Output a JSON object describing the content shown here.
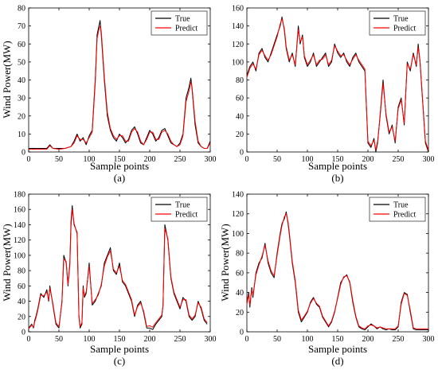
{
  "colors": {
    "true_series": "#000000",
    "predict_series": "#ff0000"
  },
  "chart_data": [
    {
      "type": "line",
      "panel_label": "(a)",
      "xlabel": "Sample points",
      "ylabel": "Wind Power(MW)",
      "xlim": [
        0,
        300
      ],
      "ylim": [
        0,
        80
      ],
      "xticks": [
        0,
        50,
        100,
        150,
        200,
        250,
        300
      ],
      "yticks": [
        0,
        10,
        20,
        30,
        40,
        50,
        60,
        70,
        80
      ],
      "legend_position": "top-right",
      "series": [
        {
          "name": "True",
          "x": [
            0,
            10,
            20,
            30,
            35,
            40,
            50,
            60,
            70,
            75,
            80,
            85,
            90,
            95,
            100,
            105,
            110,
            113,
            116,
            118,
            120,
            125,
            130,
            135,
            140,
            145,
            150,
            155,
            160,
            165,
            170,
            175,
            180,
            185,
            190,
            195,
            200,
            205,
            210,
            215,
            220,
            225,
            230,
            235,
            240,
            245,
            250,
            255,
            260,
            265,
            268,
            270,
            275,
            280,
            285,
            290,
            295,
            300
          ],
          "y": [
            2,
            2,
            2,
            2,
            4,
            2,
            2,
            2,
            3,
            6,
            10,
            6,
            8,
            4,
            9,
            12,
            40,
            65,
            70,
            73,
            65,
            40,
            20,
            12,
            8,
            6,
            10,
            8,
            5,
            7,
            12,
            14,
            10,
            5,
            4,
            8,
            12,
            10,
            6,
            8,
            12,
            13,
            9,
            5,
            4,
            3,
            5,
            10,
            30,
            36,
            41,
            35,
            15,
            5,
            3,
            2,
            2,
            6
          ]
        },
        {
          "name": "Predict",
          "x": [
            0,
            10,
            20,
            30,
            35,
            40,
            50,
            60,
            70,
            75,
            80,
            85,
            90,
            95,
            100,
            105,
            110,
            113,
            116,
            118,
            120,
            125,
            130,
            135,
            140,
            145,
            150,
            155,
            160,
            165,
            170,
            175,
            180,
            185,
            190,
            195,
            200,
            205,
            210,
            215,
            220,
            225,
            230,
            235,
            240,
            245,
            250,
            255,
            260,
            265,
            268,
            270,
            275,
            280,
            285,
            290,
            295,
            300
          ],
          "y": [
            1.5,
            1.5,
            1.5,
            1.5,
            3.5,
            2,
            1.5,
            2,
            3,
            5,
            9,
            7,
            7,
            5,
            8,
            11,
            38,
            63,
            68,
            70,
            67,
            42,
            22,
            13,
            9,
            7,
            9,
            9,
            6,
            6,
            11,
            13,
            11,
            6,
            4,
            7,
            11,
            11,
            7,
            7,
            11,
            12,
            10,
            6,
            4,
            3,
            4,
            9,
            28,
            34,
            39,
            36,
            17,
            6,
            3,
            2,
            2,
            5
          ]
        }
      ]
    },
    {
      "type": "line",
      "panel_label": "(b)",
      "xlabel": "Sample points",
      "ylabel": "",
      "xlim": [
        0,
        300
      ],
      "ylim": [
        0,
        160
      ],
      "xticks": [
        0,
        50,
        100,
        150,
        200,
        250,
        300
      ],
      "yticks": [
        0,
        20,
        40,
        60,
        80,
        100,
        120,
        140,
        160
      ],
      "legend_position": "top-right",
      "series": [
        {
          "name": "True",
          "x": [
            0,
            5,
            10,
            15,
            20,
            25,
            30,
            35,
            40,
            45,
            50,
            55,
            58,
            62,
            65,
            70,
            75,
            80,
            85,
            88,
            92,
            95,
            100,
            105,
            110,
            115,
            120,
            125,
            130,
            135,
            140,
            145,
            150,
            155,
            160,
            165,
            170,
            175,
            180,
            185,
            190,
            195,
            200,
            205,
            210,
            213,
            216,
            220,
            225,
            230,
            235,
            240,
            245,
            250,
            255,
            260,
            265,
            270,
            275,
            280,
            283,
            286,
            290,
            295,
            300
          ],
          "y": [
            85,
            95,
            100,
            90,
            110,
            115,
            105,
            100,
            110,
            120,
            130,
            140,
            150,
            135,
            115,
            100,
            110,
            95,
            140,
            120,
            130,
            105,
            95,
            100,
            110,
            95,
            100,
            105,
            110,
            95,
            100,
            120,
            110,
            105,
            110,
            100,
            95,
            105,
            110,
            100,
            95,
            90,
            10,
            5,
            15,
            0,
            10,
            40,
            80,
            40,
            20,
            30,
            10,
            50,
            60,
            30,
            100,
            90,
            110,
            95,
            120,
            100,
            60,
            10,
            0
          ]
        },
        {
          "name": "Predict",
          "x": [
            0,
            5,
            10,
            15,
            20,
            25,
            30,
            35,
            40,
            45,
            50,
            55,
            58,
            62,
            65,
            70,
            75,
            80,
            85,
            88,
            92,
            95,
            100,
            105,
            110,
            115,
            120,
            125,
            130,
            135,
            140,
            145,
            150,
            155,
            160,
            165,
            170,
            175,
            180,
            185,
            190,
            195,
            200,
            205,
            210,
            213,
            216,
            220,
            225,
            230,
            235,
            240,
            245,
            250,
            255,
            260,
            265,
            270,
            275,
            280,
            283,
            286,
            290,
            295,
            300
          ],
          "y": [
            83,
            93,
            98,
            92,
            108,
            113,
            107,
            102,
            108,
            118,
            128,
            142,
            148,
            137,
            117,
            102,
            108,
            97,
            136,
            122,
            128,
            107,
            97,
            102,
            108,
            97,
            102,
            103,
            108,
            97,
            102,
            118,
            112,
            107,
            108,
            102,
            97,
            103,
            108,
            102,
            97,
            92,
            12,
            7,
            13,
            2,
            12,
            38,
            76,
            42,
            22,
            28,
            12,
            48,
            58,
            32,
            98,
            92,
            108,
            97,
            116,
            102,
            62,
            12,
            2
          ]
        }
      ]
    },
    {
      "type": "line",
      "panel_label": "(c)",
      "xlabel": "Sample points",
      "ylabel": "Wind Power(MW)",
      "xlim": [
        0,
        300
      ],
      "ylim": [
        0,
        180
      ],
      "xticks": [
        0,
        50,
        100,
        150,
        200,
        250,
        300
      ],
      "yticks": [
        0,
        20,
        40,
        60,
        80,
        100,
        120,
        140,
        160,
        180
      ],
      "legend_position": "top-right",
      "series": [
        {
          "name": "True",
          "x": [
            0,
            5,
            8,
            10,
            12,
            15,
            20,
            25,
            30,
            33,
            35,
            40,
            45,
            50,
            55,
            58,
            62,
            65,
            68,
            70,
            72,
            75,
            80,
            83,
            85,
            88,
            90,
            92,
            95,
            100,
            105,
            110,
            115,
            120,
            125,
            130,
            135,
            140,
            145,
            150,
            155,
            160,
            165,
            170,
            175,
            180,
            185,
            190,
            195,
            200,
            205,
            210,
            215,
            220,
            222,
            225,
            230,
            235,
            240,
            245,
            250,
            255,
            260,
            265,
            270,
            275,
            280,
            285,
            290,
            295
          ],
          "y": [
            5,
            10,
            5,
            15,
            20,
            30,
            50,
            45,
            55,
            40,
            60,
            35,
            10,
            5,
            40,
            100,
            90,
            60,
            90,
            145,
            165,
            140,
            130,
            20,
            5,
            10,
            60,
            45,
            50,
            90,
            35,
            40,
            50,
            60,
            90,
            100,
            110,
            80,
            75,
            90,
            65,
            60,
            50,
            40,
            20,
            35,
            40,
            25,
            5,
            5,
            3,
            10,
            15,
            20,
            35,
            140,
            120,
            70,
            50,
            40,
            30,
            45,
            40,
            20,
            15,
            20,
            40,
            30,
            15,
            10
          ]
        },
        {
          "name": "Predict",
          "x": [
            0,
            5,
            8,
            10,
            12,
            15,
            20,
            25,
            30,
            33,
            35,
            40,
            45,
            50,
            55,
            58,
            62,
            65,
            68,
            70,
            72,
            75,
            80,
            83,
            85,
            88,
            90,
            92,
            95,
            100,
            105,
            110,
            115,
            120,
            125,
            130,
            135,
            140,
            145,
            150,
            155,
            160,
            165,
            170,
            175,
            180,
            185,
            190,
            195,
            200,
            205,
            210,
            215,
            220,
            222,
            225,
            230,
            235,
            240,
            245,
            250,
            255,
            260,
            265,
            270,
            275,
            280,
            285,
            290,
            295
          ],
          "y": [
            4,
            9,
            6,
            13,
            18,
            28,
            48,
            47,
            52,
            42,
            57,
            37,
            12,
            7,
            38,
            95,
            92,
            62,
            86,
            138,
            160,
            142,
            128,
            22,
            7,
            12,
            57,
            47,
            52,
            86,
            37,
            42,
            48,
            62,
            86,
            98,
            106,
            82,
            77,
            86,
            67,
            62,
            52,
            42,
            22,
            33,
            38,
            27,
            7,
            8,
            6,
            12,
            17,
            22,
            34,
            135,
            122,
            72,
            52,
            42,
            32,
            42,
            42,
            22,
            17,
            22,
            38,
            32,
            17,
            12
          ]
        }
      ]
    },
    {
      "type": "line",
      "panel_label": "(d)",
      "xlabel": "Sample points",
      "ylabel": "Wind Power(MW)",
      "xlim": [
        0,
        300
      ],
      "ylim": [
        0,
        140
      ],
      "xticks": [
        0,
        50,
        100,
        150,
        200,
        250,
        300
      ],
      "yticks": [
        0,
        20,
        40,
        60,
        80,
        100,
        120,
        140
      ],
      "legend_position": "top-right",
      "series": [
        {
          "name": "True",
          "x": [
            0,
            3,
            5,
            8,
            10,
            15,
            20,
            25,
            30,
            35,
            40,
            45,
            50,
            55,
            58,
            62,
            65,
            68,
            70,
            75,
            80,
            85,
            90,
            95,
            100,
            105,
            110,
            115,
            120,
            125,
            130,
            135,
            140,
            145,
            150,
            155,
            160,
            165,
            170,
            175,
            180,
            185,
            190,
            195,
            200,
            205,
            210,
            215,
            220,
            225,
            230,
            235,
            240,
            245,
            250,
            255,
            260,
            265,
            270,
            275,
            280,
            285,
            290,
            295,
            300
          ],
          "y": [
            30,
            40,
            25,
            45,
            35,
            60,
            70,
            75,
            90,
            70,
            60,
            55,
            80,
            100,
            110,
            115,
            122,
            110,
            100,
            70,
            50,
            20,
            10,
            15,
            20,
            30,
            35,
            28,
            25,
            15,
            10,
            5,
            10,
            20,
            35,
            50,
            55,
            58,
            50,
            30,
            15,
            5,
            3,
            2,
            5,
            8,
            6,
            3,
            5,
            3,
            2,
            3,
            2,
            2,
            5,
            30,
            40,
            38,
            20,
            3,
            2,
            2,
            2,
            2,
            2
          ]
        },
        {
          "name": "Predict",
          "x": [
            0,
            3,
            5,
            8,
            10,
            15,
            20,
            25,
            30,
            35,
            40,
            45,
            50,
            55,
            58,
            62,
            65,
            68,
            70,
            75,
            80,
            85,
            90,
            95,
            100,
            105,
            110,
            115,
            120,
            125,
            130,
            135,
            140,
            145,
            150,
            155,
            160,
            165,
            170,
            175,
            180,
            185,
            190,
            195,
            200,
            205,
            210,
            215,
            220,
            225,
            230,
            235,
            240,
            245,
            250,
            255,
            260,
            265,
            270,
            275,
            280,
            285,
            290,
            295,
            300
          ],
          "y": [
            28,
            38,
            27,
            43,
            37,
            58,
            68,
            77,
            88,
            72,
            62,
            57,
            78,
            98,
            108,
            117,
            120,
            112,
            102,
            72,
            52,
            22,
            12,
            16,
            21,
            29,
            34,
            29,
            26,
            16,
            11,
            6,
            11,
            21,
            34,
            48,
            56,
            57,
            51,
            32,
            16,
            6,
            4,
            3,
            6,
            7,
            6,
            4,
            5,
            4,
            3,
            3,
            3,
            3,
            6,
            28,
            39,
            37,
            22,
            4,
            3,
            3,
            3,
            3,
            3
          ]
        }
      ]
    }
  ]
}
